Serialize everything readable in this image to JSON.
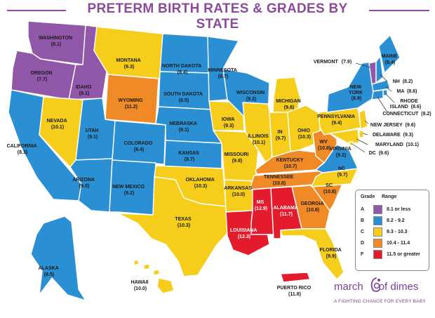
{
  "title": "PRETERM BIRTH RATES & GRADES BY STATE",
  "colors": {
    "A": "#9157a8",
    "B": "#2a8fd3",
    "C": "#f6cd1b",
    "D": "#f08a26",
    "F": "#e31b2c",
    "title": "#8b4a9c"
  },
  "legend": {
    "grade_header": "Grade",
    "range_header": "Range",
    "rows": [
      {
        "grade": "A",
        "range": "8.1 or less"
      },
      {
        "grade": "B",
        "range": "8.2 - 9.2"
      },
      {
        "grade": "C",
        "range": "9.3 - 10.3"
      },
      {
        "grade": "D",
        "range": "10.4 - 11.4"
      },
      {
        "grade": "F",
        "range": "11.5 or greater"
      }
    ]
  },
  "states": {
    "WA": {
      "name": "WASHINGTON",
      "value": "(8.1)",
      "grade": "A"
    },
    "OR": {
      "name": "OREGON",
      "value": "(7.7)",
      "grade": "A"
    },
    "CA": {
      "name": "CALIFORNIA",
      "value": "(8.3)",
      "grade": "B"
    },
    "ID": {
      "name": "IDAHO",
      "value": "(8.1)",
      "grade": "A"
    },
    "NV": {
      "name": "NEVADA",
      "value": "(10.1)",
      "grade": "C"
    },
    "MT": {
      "name": "MONTANA",
      "value": "(9.3)",
      "grade": "C"
    },
    "WY": {
      "name": "WYOMING",
      "value": "(11.2)",
      "grade": "D"
    },
    "UT": {
      "name": "UTAH",
      "value": "(9.1)",
      "grade": "B"
    },
    "AZ": {
      "name": "ARIZONA",
      "value": "(9.0)",
      "grade": "B"
    },
    "CO": {
      "name": "COLORADO",
      "value": "(8.4)",
      "grade": "B"
    },
    "NM": {
      "name": "NEW MEXICO",
      "value": "(9.2)",
      "grade": "B"
    },
    "ND": {
      "name": "NORTH DAKOTA",
      "value": "(8.4)",
      "grade": "B"
    },
    "SD": {
      "name": "SOUTH DAKOTA",
      "value": "(8.5)",
      "grade": "B"
    },
    "NE": {
      "name": "NEBRASKA",
      "value": "(9.1)",
      "grade": "B"
    },
    "KS": {
      "name": "KANSAS",
      "value": "(8.7)",
      "grade": "B"
    },
    "OK": {
      "name": "OKLAHOMA",
      "value": "(10.3)",
      "grade": "C"
    },
    "TX": {
      "name": "TEXAS",
      "value": "(10.3)",
      "grade": "C"
    },
    "MN": {
      "name": "MINNESOTA",
      "value": "(8.7)",
      "grade": "B"
    },
    "IA": {
      "name": "IOWA",
      "value": "(9.3)",
      "grade": "C"
    },
    "MO": {
      "name": "MISSOURI",
      "value": "(9.8)",
      "grade": "C"
    },
    "AR": {
      "name": "ARKANSAS",
      "value": "(10.0)",
      "grade": "C"
    },
    "LA": {
      "name": "LOUISIANA",
      "value": "(12.3)",
      "grade": "F"
    },
    "WI": {
      "name": "WISCONSIN",
      "value": "(9.2)",
      "grade": "B"
    },
    "IL": {
      "name": "ILLINOIS",
      "value": "(10.1)",
      "grade": "C"
    },
    "MI": {
      "name": "MICHIGAN",
      "value": "(9.8)",
      "grade": "C"
    },
    "IN": {
      "name": "IN",
      "value": "(9.7)",
      "grade": "C"
    },
    "OH": {
      "name": "OHIO",
      "value": "(10.3)",
      "grade": "C"
    },
    "KY": {
      "name": "KENTUCKY",
      "value": "(10.7)",
      "grade": "D"
    },
    "TN": {
      "name": "TENNESSEE",
      "value": "(10.8)",
      "grade": "D"
    },
    "MS": {
      "name": "MS",
      "value": "(12.9)",
      "grade": "F"
    },
    "AL": {
      "name": "ALABAMA",
      "value": "(11.7)",
      "grade": "F"
    },
    "GA": {
      "name": "GEORGIA",
      "value": "(10.8)",
      "grade": "D"
    },
    "FL": {
      "name": "FLORIDA",
      "value": "(9.9)",
      "grade": "C"
    },
    "SC": {
      "name": "SC",
      "value": "(10.8)",
      "grade": "D"
    },
    "NC": {
      "name": "NC",
      "value": "(9.7)",
      "grade": "C"
    },
    "VA": {
      "name": "VIRGINIA",
      "value": "(9.2)",
      "grade": "B"
    },
    "WV": {
      "name": "WV",
      "value": "(10.8)",
      "grade": "D"
    },
    "PA": {
      "name": "PENNSYLVANIA",
      "value": "(9.4)",
      "grade": "C"
    },
    "NY": {
      "name": "NEW",
      "name2": "YORK",
      "value": "(8.9)",
      "grade": "B"
    },
    "ME": {
      "name": "MAINE",
      "value": "(8.4)",
      "grade": "B"
    },
    "VT": {
      "name": "VERMONT",
      "value": "(7.9)",
      "grade": "A"
    },
    "NH": {
      "name": "NH",
      "value": "(8.2)",
      "grade": "B"
    },
    "MA": {
      "name": "MA",
      "value": "(8.6)",
      "grade": "B"
    },
    "RI": {
      "name": "RHODE",
      "name2": "ISLAND",
      "value": "(8.6)",
      "grade": "B"
    },
    "CT": {
      "name": "CONNECTICUT",
      "value": "(9.2)",
      "grade": "B"
    },
    "NJ": {
      "name": "NEW JERSEY",
      "value": "(9.6)",
      "grade": "C"
    },
    "DE": {
      "name": "DELAWARE",
      "value": "(9.3)",
      "grade": "C"
    },
    "MD": {
      "name": "MARYLAND",
      "value": "(10.1)",
      "grade": "C"
    },
    "DC": {
      "name": "DC",
      "value": "(9.6)",
      "grade": "C"
    },
    "AK": {
      "name": "ALASKA",
      "value": "(8.5)",
      "grade": "B"
    },
    "HI": {
      "name": "HAWAII",
      "value": "(10.0)",
      "grade": "C"
    },
    "PR": {
      "name": "PUERTO RICO",
      "value": "(11.8)",
      "grade": "F"
    }
  },
  "brand": {
    "name_left": "march",
    "name_right": "of dimes",
    "tagline": "A FIGHTING CHANCE FOR EVERY BABY"
  }
}
